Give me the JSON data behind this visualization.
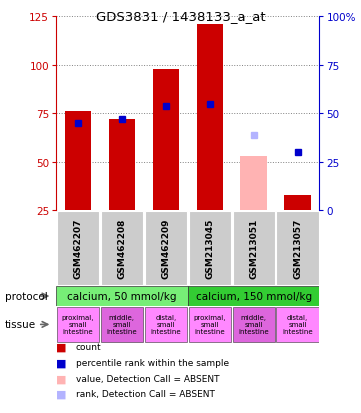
{
  "title": "GDS3831 / 1438133_a_at",
  "samples": [
    "GSM462207",
    "GSM462208",
    "GSM462209",
    "GSM213045",
    "GSM213051",
    "GSM213057"
  ],
  "bar_values": [
    76,
    72,
    98,
    121,
    null,
    33
  ],
  "bar_absent": [
    false,
    false,
    false,
    false,
    true,
    false
  ],
  "absent_bar_values": [
    null,
    null,
    null,
    null,
    53,
    null
  ],
  "blue_square_values": [
    45,
    47,
    54,
    55,
    null,
    30
  ],
  "blue_square_absent": [
    false,
    false,
    false,
    false,
    true,
    false
  ],
  "absent_blue_values": [
    null,
    null,
    null,
    null,
    39,
    null
  ],
  "ylim_left": [
    25,
    125
  ],
  "ylim_right": [
    0,
    100
  ],
  "y_ticks_left": [
    25,
    50,
    75,
    100,
    125
  ],
  "y_ticks_right": [
    0,
    25,
    50,
    75,
    100
  ],
  "protocols": [
    {
      "label": "calcium, 50 mmol/kg",
      "start": 0,
      "end": 3,
      "color": "#77ee77"
    },
    {
      "label": "calcium, 150 mmol/kg",
      "start": 3,
      "end": 6,
      "color": "#33cc33"
    }
  ],
  "tissue_colors": [
    "#ff88ff",
    "#dd66dd",
    "#ff88ff",
    "#ff88ff",
    "#dd66dd",
    "#ff88ff"
  ],
  "tissue_labels": [
    "proximal,\nsmall\nintestine",
    "middle,\nsmall\nintestine",
    "distal,\nsmall\nintestine",
    "proximal,\nsmall\nintestine",
    "middle,\nsmall\nintestine",
    "distal,\nsmall\nintestine"
  ],
  "legend_items": [
    {
      "color": "#cc0000",
      "label": "count"
    },
    {
      "color": "#0000cc",
      "label": "percentile rank within the sample"
    },
    {
      "color": "#ffb3b3",
      "label": "value, Detection Call = ABSENT"
    },
    {
      "color": "#b3b3ff",
      "label": "rank, Detection Call = ABSENT"
    }
  ],
  "bar_width": 0.6,
  "sample_box_color": "#cccccc",
  "left_axis_color": "#cc0000",
  "right_axis_color": "#0000cc",
  "bar_color": "#cc0000",
  "absent_bar_color": "#ffb3b3",
  "blue_color": "#0000cc",
  "absent_blue_color": "#b3b3ff"
}
